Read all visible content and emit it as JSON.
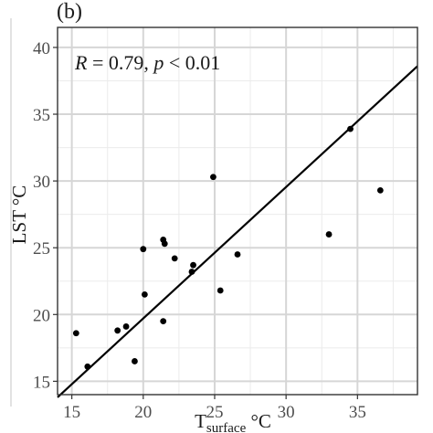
{
  "panel_label": "(b)",
  "chart_data": {
    "type": "scatter",
    "title": "",
    "xlabel": "T",
    "xlabel_sub": "surface",
    "xlabel_unit": "°C",
    "ylabel": "LST °C",
    "xlim": [
      14,
      39.2
    ],
    "ylim": [
      14,
      41.5
    ],
    "xticks": [
      15,
      20,
      25,
      30,
      35
    ],
    "yticks": [
      15,
      20,
      25,
      30,
      35,
      40
    ],
    "grid": true,
    "annotation": {
      "R_label": "R",
      "R_text": " = 0.79, ",
      "p_label": "p",
      "p_text": " < 0.01"
    },
    "regression_line": {
      "x": [
        14,
        39.2
      ],
      "y": [
        13.8,
        38.6
      ]
    },
    "points": [
      {
        "x": 15.3,
        "y": 18.6
      },
      {
        "x": 16.1,
        "y": 16.1
      },
      {
        "x": 18.2,
        "y": 18.8
      },
      {
        "x": 18.8,
        "y": 19.1
      },
      {
        "x": 19.4,
        "y": 16.5
      },
      {
        "x": 20.0,
        "y": 24.9
      },
      {
        "x": 20.1,
        "y": 21.5
      },
      {
        "x": 21.4,
        "y": 25.6
      },
      {
        "x": 21.5,
        "y": 25.3
      },
      {
        "x": 21.4,
        "y": 19.5
      },
      {
        "x": 22.2,
        "y": 24.2
      },
      {
        "x": 23.4,
        "y": 23.2
      },
      {
        "x": 23.5,
        "y": 23.7
      },
      {
        "x": 24.9,
        "y": 30.3
      },
      {
        "x": 25.4,
        "y": 21.8
      },
      {
        "x": 26.6,
        "y": 24.5
      },
      {
        "x": 33.0,
        "y": 26.0
      },
      {
        "x": 34.5,
        "y": 33.9
      },
      {
        "x": 36.6,
        "y": 29.3
      }
    ]
  }
}
